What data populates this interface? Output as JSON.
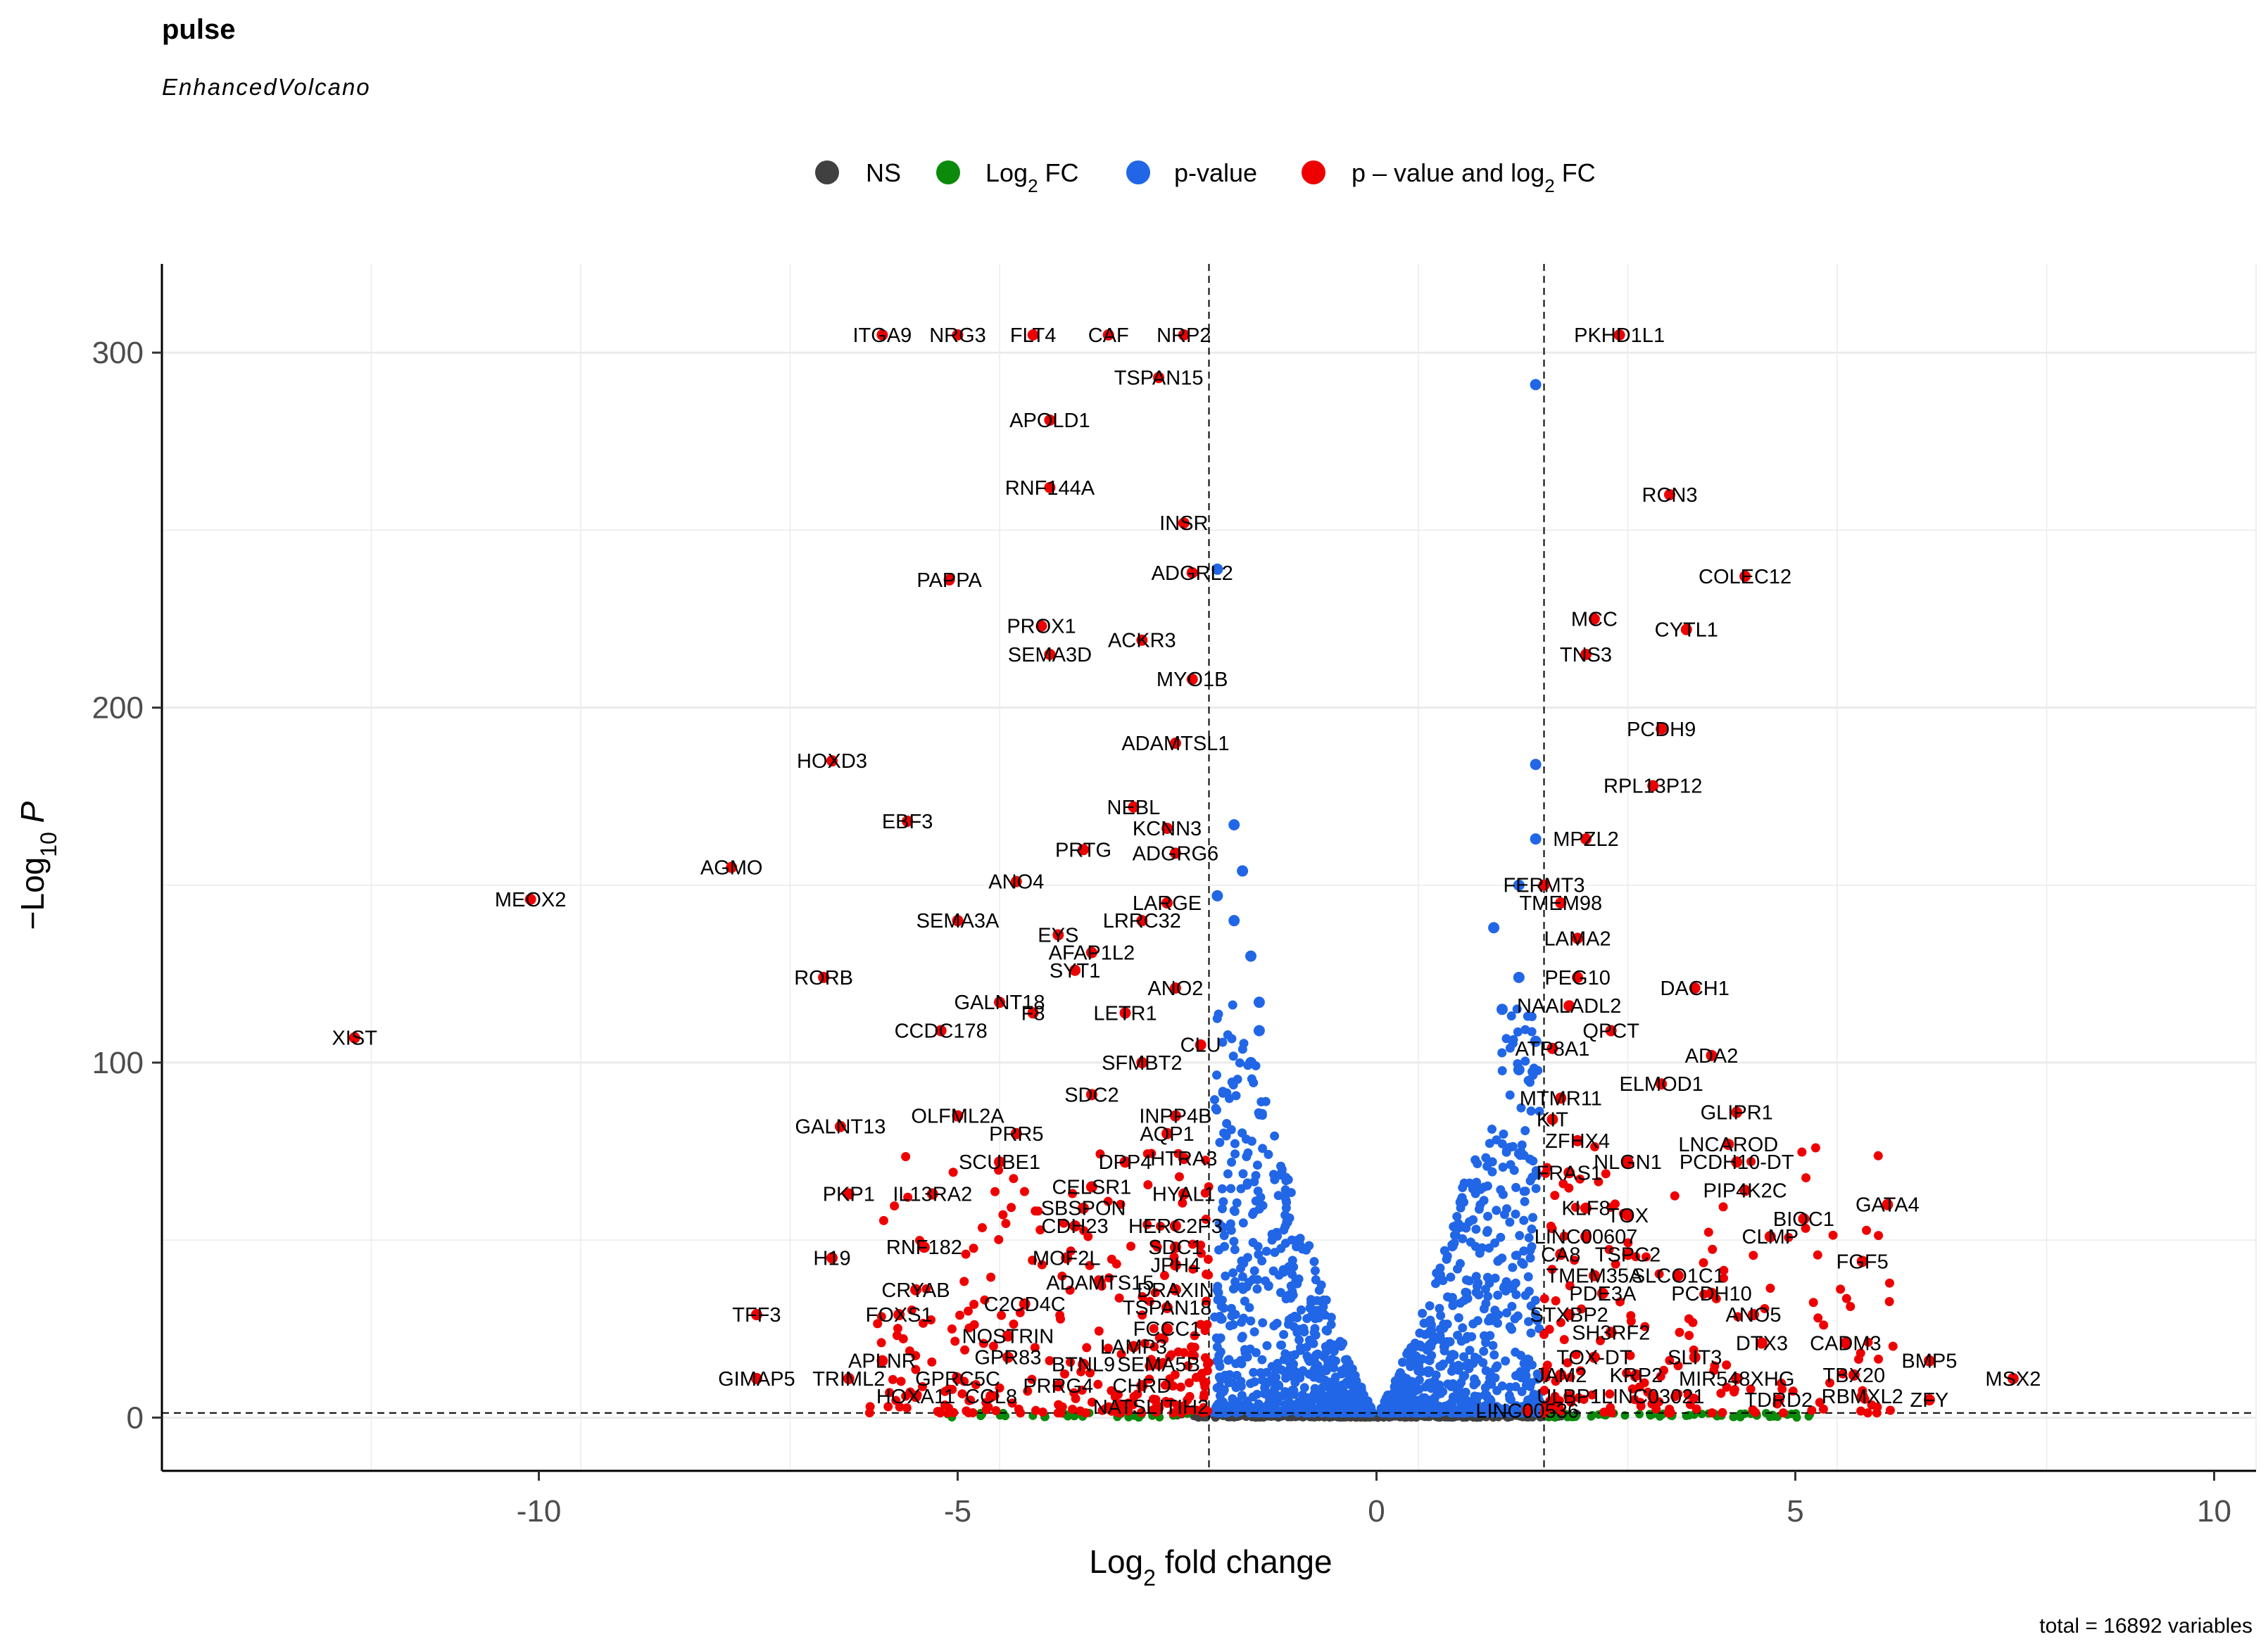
{
  "chart_data": {
    "type": "scatter",
    "title": "pulse",
    "subtitle": "EnhancedVolcano",
    "xlabel": "Log2 fold change",
    "ylabel": "−Log10 P",
    "xlim": [
      -14.5,
      10.5
    ],
    "ylim": [
      -15,
      325
    ],
    "xticks": [
      -10,
      -5,
      0,
      5,
      10
    ],
    "yticks": [
      0,
      100,
      200,
      300
    ],
    "xtick_labels": [
      "-10",
      "-5",
      "0",
      "5",
      "10"
    ],
    "ytick_labels": [
      "0",
      "100",
      "200",
      "300"
    ],
    "fc_cutoff": 2,
    "p_cutoff_log10": 1.3,
    "caption": "total = 16892 variables",
    "legend": [
      {
        "key": "NS",
        "label": "NS",
        "color": "#404040"
      },
      {
        "key": "FC",
        "label": "Log2 FC",
        "color": "#0b8a0b"
      },
      {
        "key": "P",
        "label": "p-value",
        "color": "#2166e6"
      },
      {
        "key": "FC_P",
        "label": "p – value and log2 FC",
        "color": "#ee0000"
      }
    ],
    "series": [
      {
        "name": "FC_P",
        "points": [
          {
            "label": "ITGA9",
            "x": -5.9,
            "y": 305
          },
          {
            "label": "NRG3",
            "x": -5.0,
            "y": 305
          },
          {
            "label": "FLT4",
            "x": -4.1,
            "y": 305
          },
          {
            "label": "CAF",
            "x": -3.2,
            "y": 305
          },
          {
            "label": "NRP2",
            "x": -2.3,
            "y": 305
          },
          {
            "label": "PKHD1L1",
            "x": 2.9,
            "y": 305
          },
          {
            "label": "TSPAN15",
            "x": -2.6,
            "y": 293
          },
          {
            "label": "APOLD1",
            "x": -3.9,
            "y": 281
          },
          {
            "label": "RNF144A",
            "x": -3.9,
            "y": 262
          },
          {
            "label": "RCN3",
            "x": 3.5,
            "y": 260
          },
          {
            "label": "INSR",
            "x": -2.3,
            "y": 252
          },
          {
            "label": "ADGRL2",
            "x": -2.2,
            "y": 238
          },
          {
            "label": "COLEC12",
            "x": 4.4,
            "y": 237
          },
          {
            "label": "PAPPA",
            "x": -5.1,
            "y": 236
          },
          {
            "label": "PROX1",
            "x": -4.0,
            "y": 223
          },
          {
            "label": "MCC",
            "x": 2.6,
            "y": 225
          },
          {
            "label": "CYTL1",
            "x": 3.7,
            "y": 222
          },
          {
            "label": "ACKR3",
            "x": -2.8,
            "y": 219
          },
          {
            "label": "SEMA3D",
            "x": -3.9,
            "y": 215
          },
          {
            "label": "TNS3",
            "x": 2.5,
            "y": 215
          },
          {
            "label": "MYO1B",
            "x": -2.2,
            "y": 208
          },
          {
            "label": "PCDH9",
            "x": 3.4,
            "y": 194
          },
          {
            "label": "ADAMTSL1",
            "x": -2.4,
            "y": 190
          },
          {
            "label": "HOXD3",
            "x": -6.5,
            "y": 185
          },
          {
            "label": "RPL13P12",
            "x": 3.3,
            "y": 178
          },
          {
            "label": "NEBL",
            "x": -2.9,
            "y": 172
          },
          {
            "label": "EBF3",
            "x": -5.6,
            "y": 168
          },
          {
            "label": "KCNN3",
            "x": -2.5,
            "y": 166
          },
          {
            "label": "PRTG",
            "x": -3.5,
            "y": 160
          },
          {
            "label": "ADGRG6",
            "x": -2.4,
            "y": 159
          },
          {
            "label": "MPZL2",
            "x": 2.5,
            "y": 163
          },
          {
            "label": "AGMO",
            "x": -7.7,
            "y": 155
          },
          {
            "label": "ANO4",
            "x": -4.3,
            "y": 151
          },
          {
            "label": "FERMT3",
            "x": 2.0,
            "y": 150
          },
          {
            "label": "MEOX2",
            "x": -10.1,
            "y": 146
          },
          {
            "label": "LARGE",
            "x": -2.5,
            "y": 145
          },
          {
            "label": "TMEM98",
            "x": 2.2,
            "y": 145
          },
          {
            "label": "LRRC32",
            "x": -2.8,
            "y": 140
          },
          {
            "label": "SEMA3A",
            "x": -5.0,
            "y": 140
          },
          {
            "label": "EYS",
            "x": -3.8,
            "y": 136
          },
          {
            "label": "LAMA2",
            "x": 2.4,
            "y": 135
          },
          {
            "label": "AFAP1L2",
            "x": -3.4,
            "y": 131
          },
          {
            "label": "SYT1",
            "x": -3.6,
            "y": 126
          },
          {
            "label": "RORB",
            "x": -6.6,
            "y": 124
          },
          {
            "label": "PEG10",
            "x": 2.4,
            "y": 124
          },
          {
            "label": "ANO2",
            "x": -2.4,
            "y": 121
          },
          {
            "label": "DACH1",
            "x": 3.8,
            "y": 121
          },
          {
            "label": "GALNT18",
            "x": -4.5,
            "y": 117
          },
          {
            "label": "NAALADL2",
            "x": 2.3,
            "y": 116
          },
          {
            "label": "LETR1",
            "x": -3.0,
            "y": 114
          },
          {
            "label": "F8",
            "x": -4.1,
            "y": 114
          },
          {
            "label": "CCDC178",
            "x": -5.2,
            "y": 109
          },
          {
            "label": "QPCT",
            "x": 2.8,
            "y": 109
          },
          {
            "label": "XIST",
            "x": -12.2,
            "y": 107
          },
          {
            "label": "CLU",
            "x": -2.1,
            "y": 105
          },
          {
            "label": "ATP8A1",
            "x": 2.1,
            "y": 104
          },
          {
            "label": "ADA2",
            "x": 4.0,
            "y": 102
          },
          {
            "label": "SFMBT2",
            "x": -2.8,
            "y": 100
          },
          {
            "label": "SDC2",
            "x": -3.4,
            "y": 91
          },
          {
            "label": "ELMOD1",
            "x": 3.4,
            "y": 94
          },
          {
            "label": "MTMR11",
            "x": 2.2,
            "y": 90
          },
          {
            "label": "INPP4B",
            "x": -2.4,
            "y": 85
          },
          {
            "label": "GLIPR1",
            "x": 4.3,
            "y": 86
          },
          {
            "label": "KIT",
            "x": 2.1,
            "y": 84
          },
          {
            "label": "OLFML2A",
            "x": -5.0,
            "y": 85
          },
          {
            "label": "GALNT13",
            "x": -6.4,
            "y": 82
          },
          {
            "label": "AQP1",
            "x": -2.5,
            "y": 80
          },
          {
            "label": "PRR5",
            "x": -4.3,
            "y": 80
          },
          {
            "label": "ZFHX4",
            "x": 2.4,
            "y": 78
          },
          {
            "label": "LNCAROD",
            "x": 4.2,
            "y": 77
          },
          {
            "label": "HTRA3",
            "x": -2.3,
            "y": 73
          },
          {
            "label": "DPP4",
            "x": -3.0,
            "y": 72
          },
          {
            "label": "SCUBE1",
            "x": -4.5,
            "y": 72
          },
          {
            "label": "PCDH10-DT",
            "x": 4.3,
            "y": 72
          },
          {
            "label": "NLGN1",
            "x": 3.0,
            "y": 72
          },
          {
            "label": "FRAS1",
            "x": 2.3,
            "y": 69
          },
          {
            "label": "CELSR1",
            "x": -3.4,
            "y": 65
          },
          {
            "label": "HYAL1",
            "x": -2.3,
            "y": 63
          },
          {
            "label": "PKP1",
            "x": -6.3,
            "y": 63
          },
          {
            "label": "IL13RA2",
            "x": -5.3,
            "y": 63
          },
          {
            "label": "PIP4K2C",
            "x": 4.4,
            "y": 64
          },
          {
            "label": "GATA4",
            "x": 6.1,
            "y": 60
          },
          {
            "label": "KLF8",
            "x": 2.5,
            "y": 59
          },
          {
            "label": "SBSPON",
            "x": -3.5,
            "y": 59
          },
          {
            "label": "TOX",
            "x": 3.0,
            "y": 57
          },
          {
            "label": "BIOC1",
            "x": 5.1,
            "y": 56
          },
          {
            "label": "CDH23",
            "x": -3.6,
            "y": 54
          },
          {
            "label": "HERC2P3",
            "x": -2.4,
            "y": 54
          },
          {
            "label": "LINC00607",
            "x": 2.5,
            "y": 51
          },
          {
            "label": "CLMP",
            "x": 4.7,
            "y": 51
          },
          {
            "label": "RNF182",
            "x": -5.4,
            "y": 48
          },
          {
            "label": "SDC1",
            "x": -2.4,
            "y": 48
          },
          {
            "label": "H19",
            "x": -6.5,
            "y": 45
          },
          {
            "label": "MOF2L",
            "x": -3.7,
            "y": 45
          },
          {
            "label": "CA8",
            "x": 2.2,
            "y": 46
          },
          {
            "label": "TSPC2",
            "x": 3.0,
            "y": 46
          },
          {
            "label": "FGF5",
            "x": 5.8,
            "y": 44
          },
          {
            "label": "JPH4",
            "x": -2.4,
            "y": 43
          },
          {
            "label": "TMEM35A",
            "x": 2.6,
            "y": 40
          },
          {
            "label": "SLCO1C1",
            "x": 3.6,
            "y": 40
          },
          {
            "label": "ADAMTS15",
            "x": -3.3,
            "y": 38
          },
          {
            "label": "CRYAB",
            "x": -5.5,
            "y": 36
          },
          {
            "label": "DRAXIN",
            "x": -2.4,
            "y": 36
          },
          {
            "label": "PDE3A",
            "x": 2.7,
            "y": 35
          },
          {
            "label": "PCDH10",
            "x": 4.0,
            "y": 35
          },
          {
            "label": "C2CD4C",
            "x": -4.2,
            "y": 32
          },
          {
            "label": "TSPAN18",
            "x": -2.5,
            "y": 31
          },
          {
            "label": "FOXS1",
            "x": -5.7,
            "y": 29
          },
          {
            "label": "TFF3",
            "x": -7.4,
            "y": 29
          },
          {
            "label": "STXBP2",
            "x": 2.3,
            "y": 29
          },
          {
            "label": "ANO5",
            "x": 4.5,
            "y": 29
          },
          {
            "label": "FCCC1",
            "x": -2.5,
            "y": 25
          },
          {
            "label": "NOSTRIN",
            "x": -4.4,
            "y": 23
          },
          {
            "label": "SH3RF2",
            "x": 2.8,
            "y": 24
          },
          {
            "label": "DTX3",
            "x": 4.6,
            "y": 21
          },
          {
            "label": "CADM3",
            "x": 5.6,
            "y": 21
          },
          {
            "label": "LAMP3",
            "x": -2.9,
            "y": 20
          },
          {
            "label": "GPR83",
            "x": -4.4,
            "y": 17
          },
          {
            "label": "TOX-DT",
            "x": 2.6,
            "y": 17
          },
          {
            "label": "SLIT3",
            "x": 3.8,
            "y": 17
          },
          {
            "label": "APLNR",
            "x": -5.9,
            "y": 16
          },
          {
            "label": "BMP5",
            "x": 6.6,
            "y": 16
          },
          {
            "label": "BTNL9",
            "x": -3.5,
            "y": 15
          },
          {
            "label": "SEMA5B",
            "x": -2.6,
            "y": 15
          },
          {
            "label": "TRIML2",
            "x": -6.3,
            "y": 11
          },
          {
            "label": "GPRC5C",
            "x": -5.0,
            "y": 11
          },
          {
            "label": "GIMAP5",
            "x": -7.4,
            "y": 11
          },
          {
            "label": "JAM2",
            "x": 2.2,
            "y": 12
          },
          {
            "label": "KRP2",
            "x": 3.1,
            "y": 12
          },
          {
            "label": "MIR548XHG",
            "x": 4.3,
            "y": 11
          },
          {
            "label": "TBX20",
            "x": 5.7,
            "y": 12
          },
          {
            "label": "MSX2",
            "x": 7.6,
            "y": 11
          },
          {
            "label": "PRRG4",
            "x": -3.8,
            "y": 9
          },
          {
            "label": "CHRD",
            "x": -2.8,
            "y": 9
          },
          {
            "label": "HOXA11",
            "x": -5.5,
            "y": 6
          },
          {
            "label": "CCL8",
            "x": -4.6,
            "y": 6
          },
          {
            "label": "ULBP1",
            "x": 2.3,
            "y": 6
          },
          {
            "label": "LINC03021",
            "x": 3.3,
            "y": 6
          },
          {
            "label": "TDRD2",
            "x": 4.8,
            "y": 5
          },
          {
            "label": "RBMXL2",
            "x": 5.8,
            "y": 6
          },
          {
            "label": "ZFY",
            "x": 6.6,
            "y": 5
          },
          {
            "label": "NATSL",
            "x": -3.0,
            "y": 3
          },
          {
            "label": "ITIH2",
            "x": -2.3,
            "y": 3
          },
          {
            "label": "LINC00536",
            "x": 1.8,
            "y": 2
          }
        ]
      },
      {
        "name": "P",
        "points": [
          {
            "label": "",
            "x": 1.9,
            "y": 291
          },
          {
            "label": "",
            "x": -1.9,
            "y": 239
          },
          {
            "label": "",
            "x": 1.9,
            "y": 184
          },
          {
            "label": "",
            "x": -1.7,
            "y": 167
          },
          {
            "label": "",
            "x": 1.9,
            "y": 163
          },
          {
            "label": "",
            "x": -1.6,
            "y": 154
          },
          {
            "label": "",
            "x": 1.7,
            "y": 150
          },
          {
            "label": "",
            "x": -1.9,
            "y": 147
          },
          {
            "label": "",
            "x": -1.7,
            "y": 140
          },
          {
            "label": "",
            "x": 1.4,
            "y": 138
          },
          {
            "label": "",
            "x": -1.5,
            "y": 130
          },
          {
            "label": "",
            "x": 1.7,
            "y": 124
          },
          {
            "label": "",
            "x": -1.4,
            "y": 117
          },
          {
            "label": "",
            "x": 1.5,
            "y": 115
          },
          {
            "label": "",
            "x": -1.4,
            "y": 109
          },
          {
            "label": "",
            "x": 1.9,
            "y": 106
          },
          {
            "label": "",
            "x": -1.5,
            "y": 100
          },
          {
            "label": "",
            "x": 1.7,
            "y": 98
          }
        ]
      }
    ]
  }
}
